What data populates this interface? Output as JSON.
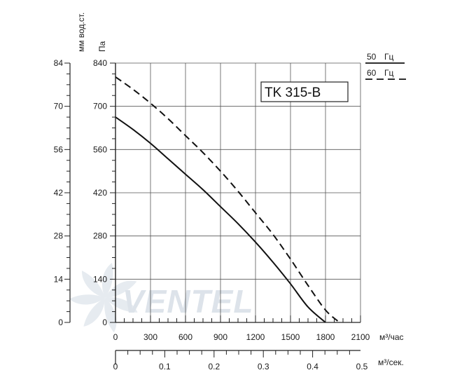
{
  "chart_data": {
    "type": "line",
    "model_label": "TK 315-B",
    "x_axis": {
      "label": "м³/час",
      "range": [
        0,
        2100
      ],
      "ticks": [
        0,
        300,
        600,
        900,
        1200,
        1500,
        1800,
        2100
      ],
      "tick_labels": [
        "0",
        "300",
        "600",
        "900",
        "1200",
        "1500",
        "1800",
        "2100"
      ]
    },
    "x2_axis": {
      "label": "м³/сек.",
      "ticks": [
        0,
        0.1,
        0.2,
        0.3,
        0.4,
        0.5
      ],
      "tick_labels": [
        "0",
        "0.1",
        "0.2",
        "0.3",
        "0.4",
        "0.5"
      ]
    },
    "y_axis": {
      "label": "Па",
      "range": [
        0,
        840
      ],
      "ticks": [
        0,
        140,
        280,
        420,
        560,
        700,
        840
      ],
      "tick_labels": [
        "0",
        "140",
        "280",
        "420",
        "560",
        "700",
        "840"
      ]
    },
    "y2_axis": {
      "label": "мм вод.ст.",
      "ticks": [
        0,
        14,
        28,
        42,
        56,
        70,
        84
      ],
      "tick_labels": [
        "0",
        "14",
        "28",
        "42",
        "56",
        "70",
        "84"
      ]
    },
    "legend": {
      "placement": "top-right",
      "entries": [
        {
          "value": "50",
          "unit": "Гц",
          "style": "solid"
        },
        {
          "value": "60",
          "unit": "Гц",
          "style": "dashed"
        }
      ]
    },
    "series": [
      {
        "style": "solid",
        "x": [
          0,
          150,
          300,
          450,
          600,
          750,
          900,
          1050,
          1200,
          1350,
          1500,
          1650,
          1800
        ],
        "y": [
          665,
          625,
          580,
          530,
          480,
          430,
          375,
          320,
          260,
          195,
          125,
          50,
          0
        ]
      },
      {
        "style": "dashed",
        "x": [
          0,
          150,
          300,
          450,
          600,
          750,
          900,
          1050,
          1200,
          1350,
          1500,
          1650,
          1800,
          1920
        ],
        "y": [
          795,
          755,
          710,
          660,
          605,
          550,
          490,
          425,
          355,
          285,
          205,
          120,
          40,
          0
        ]
      }
    ],
    "grid": true,
    "watermark": "VENTEL"
  }
}
